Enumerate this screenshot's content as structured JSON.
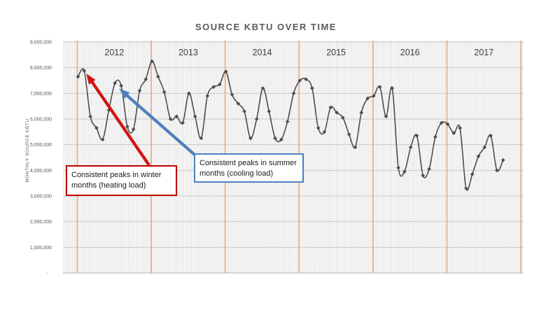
{
  "title": "SOURCE KBTU OVER TIME",
  "y_axis_title": "MONTHLY SOURCE KBTU",
  "annotations": {
    "winter": {
      "text": "Consistent peaks in winter months (heating load)",
      "color": "#c00000",
      "target_month_index": 1
    },
    "summer": {
      "text": "Consistent peaks in summer months (cooling load)",
      "color": "#4f81bd",
      "target_month_index": 6
    }
  },
  "colors": {
    "series_line": "#4d4d4d",
    "marker": "#4d4d4d",
    "year_gridline": "#e2a57a",
    "minor_vertical_gridline": "#d8d8d8",
    "horizontal_gridline": "#c9c9c9",
    "axis_line": "#bfbfbf",
    "title_text": "#595959",
    "tick_text": "#595959",
    "year_label_text": "#404040",
    "winter_arrow": "#d21414",
    "summer_arrow": "#4f81bd"
  },
  "chart_data": {
    "type": "line",
    "title": "SOURCE KBTU OVER TIME",
    "xlabel": "",
    "ylabel": "MONTHLY SOURCE KBTU",
    "ylim": [
      0,
      9000000
    ],
    "y_tick_step": 1000000,
    "y_tick_labels": [
      "9,000,000",
      "8,000,000",
      "7,000,000",
      "6,000,000",
      "5,000,000",
      "4,000,000",
      "3,000,000",
      "2,000,000",
      "1,000,000",
      "-"
    ],
    "year_labels": [
      "2012",
      "2013",
      "2014",
      "2015",
      "2016",
      "2017"
    ],
    "grid": "dense weekly vertical gray lines; orange vertical line at each year start; horizontal gridline every 1,000,000",
    "legend_position": "none",
    "marker_style": "diamond",
    "series": [
      {
        "name": "Monthly Source kBTU",
        "start": "2012-01",
        "interval": "monthly",
        "values": [
          7650000,
          7880000,
          6100000,
          5650000,
          5200000,
          6350000,
          7400000,
          7300000,
          5700000,
          5600000,
          7100000,
          7550000,
          8250000,
          7650000,
          7050000,
          6000000,
          6100000,
          5850000,
          7000000,
          6100000,
          5250000,
          6900000,
          7250000,
          7350000,
          7850000,
          6950000,
          6600000,
          6300000,
          5250000,
          6000000,
          7200000,
          6300000,
          5250000,
          5200000,
          5900000,
          7000000,
          7500000,
          7550000,
          7200000,
          5650000,
          5500000,
          6450000,
          6250000,
          6050000,
          5400000,
          4900000,
          6250000,
          6800000,
          6900000,
          7250000,
          6100000,
          7200000,
          4100000,
          3950000,
          4900000,
          5350000,
          3800000,
          4050000,
          5300000,
          5850000,
          5800000,
          5450000,
          5650000,
          3300000,
          3850000,
          4550000,
          4900000,
          5350000,
          4000000,
          4400000
        ]
      }
    ]
  }
}
